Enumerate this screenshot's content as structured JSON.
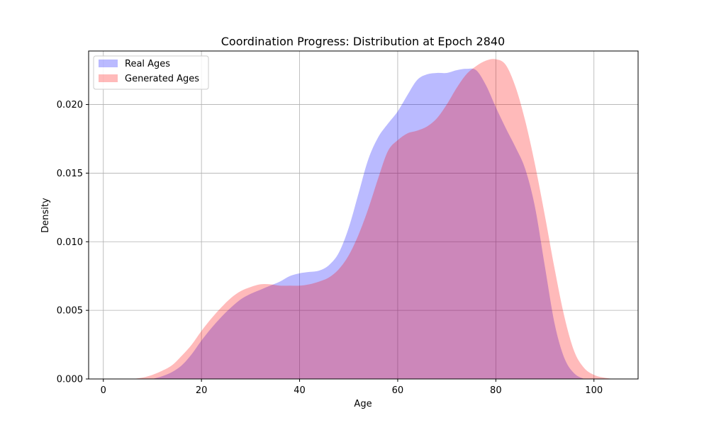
{
  "chart_data": {
    "type": "area",
    "title": "Coordination Progress: Distribution at Epoch 2840",
    "xlabel": "Age",
    "ylabel": "Density",
    "xlim": [
      -3,
      109
    ],
    "ylim": [
      0,
      0.0239
    ],
    "xticks": [
      0,
      20,
      40,
      60,
      80,
      100
    ],
    "yticks": [
      0.0,
      0.005,
      0.01,
      0.015,
      0.02
    ],
    "ytick_labels": [
      "0.000",
      "0.005",
      "0.010",
      "0.015",
      "0.020"
    ],
    "grid": true,
    "legend_position": "top-left",
    "series": [
      {
        "name": "Real Ages",
        "color": "#0000ff",
        "opacity": 0.27,
        "x": [
          10,
          12,
          14,
          16,
          18,
          20,
          22,
          24,
          26,
          28,
          30,
          32,
          34,
          36,
          38,
          40,
          42,
          44,
          46,
          48,
          50,
          52,
          54,
          56,
          58,
          60,
          62,
          64,
          66,
          68,
          70,
          72,
          74,
          76,
          78,
          80,
          82,
          84,
          86,
          88,
          90,
          92,
          94,
          96,
          98
        ],
        "y": [
          0.0,
          0.0002,
          0.0005,
          0.001,
          0.0018,
          0.0028,
          0.0037,
          0.0045,
          0.0052,
          0.0058,
          0.0062,
          0.0065,
          0.0068,
          0.0071,
          0.0075,
          0.0077,
          0.0078,
          0.0079,
          0.0083,
          0.0092,
          0.011,
          0.0135,
          0.016,
          0.0176,
          0.0186,
          0.0195,
          0.0207,
          0.0218,
          0.0222,
          0.0223,
          0.0223,
          0.0225,
          0.0226,
          0.0225,
          0.0214,
          0.0198,
          0.0183,
          0.0169,
          0.0153,
          0.0125,
          0.0082,
          0.004,
          0.0015,
          0.0004,
          0.0
        ]
      },
      {
        "name": "Generated Ages",
        "color": "#ff0000",
        "opacity": 0.27,
        "x": [
          6,
          8,
          10,
          12,
          14,
          16,
          18,
          20,
          22,
          24,
          26,
          28,
          30,
          32,
          34,
          36,
          38,
          40,
          42,
          44,
          46,
          48,
          50,
          52,
          54,
          56,
          58,
          60,
          62,
          64,
          66,
          68,
          70,
          72,
          74,
          76,
          78,
          80,
          82,
          84,
          86,
          88,
          90,
          92,
          94,
          96,
          98,
          100,
          102,
          104
        ],
        "y": [
          0.0,
          0.0001,
          0.0003,
          0.0006,
          0.001,
          0.0017,
          0.0025,
          0.0035,
          0.0044,
          0.0052,
          0.0059,
          0.0064,
          0.0067,
          0.0069,
          0.0069,
          0.0068,
          0.0068,
          0.0068,
          0.0069,
          0.0071,
          0.0074,
          0.008,
          0.009,
          0.0105,
          0.0124,
          0.0146,
          0.0166,
          0.0174,
          0.0179,
          0.0181,
          0.0184,
          0.019,
          0.02,
          0.0212,
          0.0222,
          0.0228,
          0.0232,
          0.0233,
          0.0229,
          0.0213,
          0.0188,
          0.0156,
          0.0119,
          0.008,
          0.0045,
          0.002,
          0.0008,
          0.0003,
          0.0001,
          0.0
        ]
      }
    ]
  }
}
